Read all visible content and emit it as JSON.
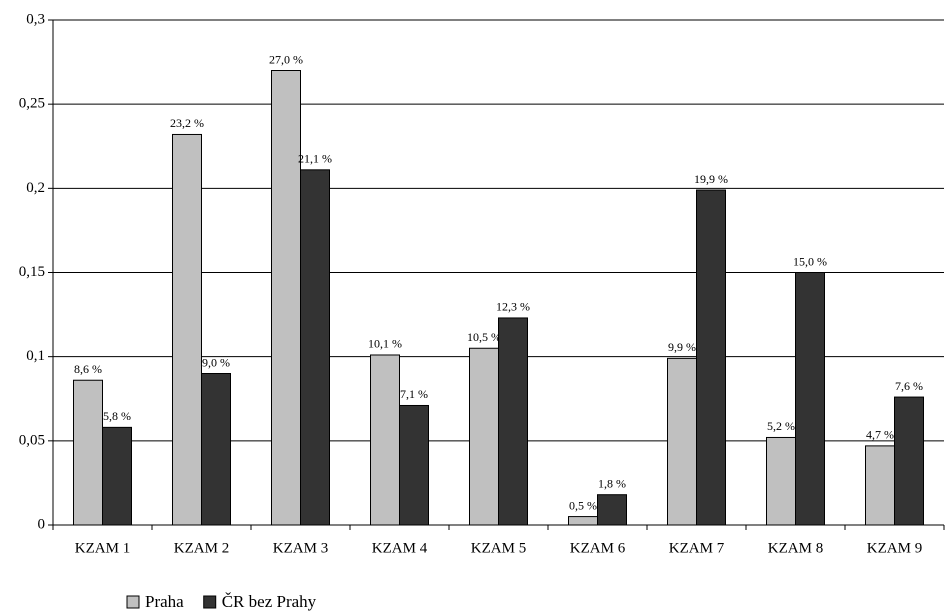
{
  "chart_data": {
    "type": "bar",
    "categories": [
      "KZAM 1",
      "KZAM 2",
      "KZAM 3",
      "KZAM 4",
      "KZAM 5",
      "KZAM 6",
      "KZAM 7",
      "KZAM 8",
      "KZAM 9"
    ],
    "series": [
      {
        "name": "Praha",
        "color": "#c0c0c0",
        "values": [
          0.086,
          0.232,
          0.27,
          0.101,
          0.105,
          0.005,
          0.099,
          0.052,
          0.047
        ],
        "value_labels": [
          "8,6 %",
          "23,2 %",
          "27,0 %",
          "10,1 %",
          "10,5 %",
          "0,5 %",
          "9,9 %",
          "5,2 %",
          "4,7 %"
        ]
      },
      {
        "name": "ČR bez Prahy",
        "color": "#333333",
        "values": [
          0.058,
          0.09,
          0.211,
          0.071,
          0.123,
          0.018,
          0.199,
          0.15,
          0.076
        ],
        "value_labels": [
          "5,8 %",
          "9,0 %",
          "21,1 %",
          "7,1 %",
          "12,3 %",
          "1,8 %",
          "19,9 %",
          "15,0 %",
          "7,6 %"
        ]
      }
    ],
    "ylim": [
      0,
      0.3
    ],
    "yticks": [
      0,
      {
        "value": 0.05,
        "label": "0,05"
      },
      {
        "value": 0.1,
        "label": "0,1"
      },
      {
        "value": 0.15,
        "label": "0,15"
      },
      {
        "value": 0.2,
        "label": "0,2"
      },
      {
        "value": 0.25,
        "label": "0,25"
      },
      {
        "value": 0.3,
        "label": "0,3"
      }
    ],
    "grid": true
  }
}
